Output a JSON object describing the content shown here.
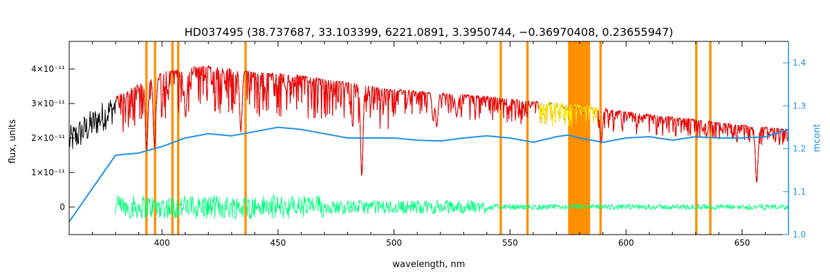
{
  "chart_data": {
    "type": "line",
    "title": "HD037495   (38.737687, 33.103399, 6221.0891, 3.3950744, −0.36970408, 0.23655947)",
    "xlabel": "wavelength, nm",
    "ylabel": "flux, units",
    "y2label": "mcont",
    "xlim": [
      360,
      670
    ],
    "ylim": [
      -8e-12,
      4.8e-11
    ],
    "y2lim": [
      1.0,
      1.45
    ],
    "x_ticks": [
      400,
      450,
      500,
      550,
      600,
      650
    ],
    "y_ticks": [
      {
        "value": 0,
        "label": "0"
      },
      {
        "value": 1e-11,
        "label": "1×10⁻¹¹"
      },
      {
        "value": 2e-11,
        "label": "2×10⁻¹¹"
      },
      {
        "value": 3e-11,
        "label": "3×10⁻¹¹"
      },
      {
        "value": 4e-11,
        "label": "4×10⁻¹¹"
      }
    ],
    "y2_ticks": [
      1.0,
      1.1,
      1.2,
      1.3,
      1.4
    ],
    "masked_regions": [
      [
        392.8,
        393.8
      ],
      [
        396.5,
        397.5
      ],
      [
        404.0,
        405.0
      ],
      [
        406.5,
        407.5
      ],
      [
        435.5,
        436.5
      ],
      [
        545.5,
        546.5
      ],
      [
        557.0,
        558.0
      ],
      [
        575.0,
        584.5
      ],
      [
        588.5,
        589.5
      ],
      [
        629.8,
        630.8
      ],
      [
        635.8,
        636.8
      ]
    ],
    "colors": {
      "observed": "#000000",
      "model": "#ff0000",
      "excluded_model": "#ffff00",
      "residual": "#00ff7f",
      "continuum": "#1e8fe6",
      "mask": "#ff9000",
      "right_axis": "#1a8fe0"
    },
    "series": [
      {
        "key": "continuum",
        "axis": "y2",
        "x": [
          360,
          380,
          390,
          400,
          410,
          420,
          430,
          440,
          450,
          460,
          470,
          480,
          490,
          500,
          510,
          520,
          530,
          540,
          550,
          560,
          570,
          575,
          580,
          590,
          600,
          610,
          620,
          630,
          640,
          650,
          660,
          670
        ],
        "values": [
          1.03,
          1.185,
          1.19,
          1.205,
          1.225,
          1.235,
          1.23,
          1.24,
          1.25,
          1.245,
          1.235,
          1.225,
          1.225,
          1.225,
          1.22,
          1.218,
          1.225,
          1.23,
          1.225,
          1.215,
          1.228,
          1.232,
          1.225,
          1.215,
          1.225,
          1.228,
          1.22,
          1.228,
          1.225,
          1.225,
          1.228,
          1.245
        ]
      }
    ],
    "observed_envelope": {
      "x": [
        360,
        380,
        400,
        420,
        440,
        460,
        480,
        500,
        520,
        540,
        560,
        580,
        600,
        620,
        640,
        660,
        670
      ],
      "values": [
        2.2e-11,
        3.2e-11,
        3.9e-11,
        4.1e-11,
        3.9e-11,
        3.8e-11,
        3.6e-11,
        3.4e-11,
        3.3e-11,
        3.2e-11,
        3.05e-11,
        2.95e-11,
        2.75e-11,
        2.6e-11,
        2.45e-11,
        2.3e-11,
        2.25e-11
      ]
    },
    "strong_lines": [
      {
        "x": 393.4,
        "depth": 0.55
      },
      {
        "x": 396.8,
        "depth": 0.55
      },
      {
        "x": 410.2,
        "depth": 0.35
      },
      {
        "x": 434.0,
        "depth": 0.45
      },
      {
        "x": 486.1,
        "depth": 0.75
      },
      {
        "x": 516.9,
        "depth": 0.25
      },
      {
        "x": 518.4,
        "depth": 0.3
      },
      {
        "x": 527.0,
        "depth": 0.2
      },
      {
        "x": 589.3,
        "depth": 0.35
      },
      {
        "x": 656.3,
        "depth": 0.7
      }
    ]
  }
}
